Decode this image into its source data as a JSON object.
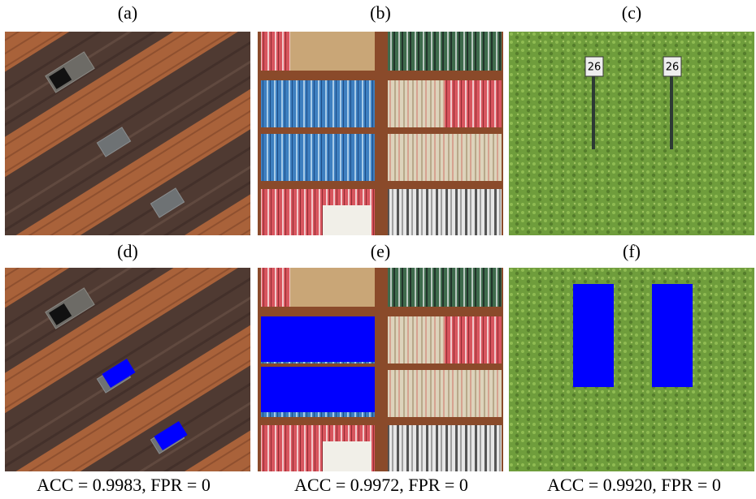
{
  "panels": [
    {
      "label": "(a)"
    },
    {
      "label": "(b)"
    },
    {
      "label": "(c)"
    },
    {
      "label": "(d)"
    },
    {
      "label": "(e)"
    },
    {
      "label": "(f)"
    }
  ],
  "captions": [
    "ACC = 0.9983, FPR = 0",
    "ACC = 0.9972, FPR = 0",
    "ACC = 0.9920, FPR = 0"
  ]
}
